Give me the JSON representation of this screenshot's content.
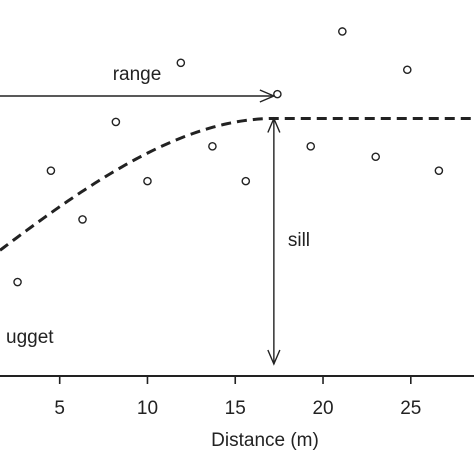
{
  "chart_data": {
    "type": "scatter",
    "xlabel": "Distance (m)",
    "x_ticks": [
      5,
      10,
      15,
      20,
      25
    ],
    "xlim": [
      1.6,
      28.6
    ],
    "ylim": [
      0,
      1.0
    ],
    "grid": false,
    "points": [
      {
        "x": 2.6,
        "y": 0.27
      },
      {
        "x": 4.5,
        "y": 0.59
      },
      {
        "x": 6.3,
        "y": 0.45
      },
      {
        "x": 8.2,
        "y": 0.73
      },
      {
        "x": 10.0,
        "y": 0.56
      },
      {
        "x": 11.9,
        "y": 0.9
      },
      {
        "x": 13.7,
        "y": 0.66
      },
      {
        "x": 15.6,
        "y": 0.56
      },
      {
        "x": 17.4,
        "y": 0.81
      },
      {
        "x": 19.3,
        "y": 0.66
      },
      {
        "x": 21.1,
        "y": 0.99
      },
      {
        "x": 23.0,
        "y": 0.63
      },
      {
        "x": 24.8,
        "y": 0.88
      },
      {
        "x": 26.6,
        "y": 0.59
      }
    ],
    "model": {
      "line_style": "dashed",
      "nugget": 0.3,
      "sill": 0.74,
      "range": 17.2
    },
    "annotations": {
      "range": "range",
      "sill": "sill",
      "nugget": "ugget"
    }
  }
}
